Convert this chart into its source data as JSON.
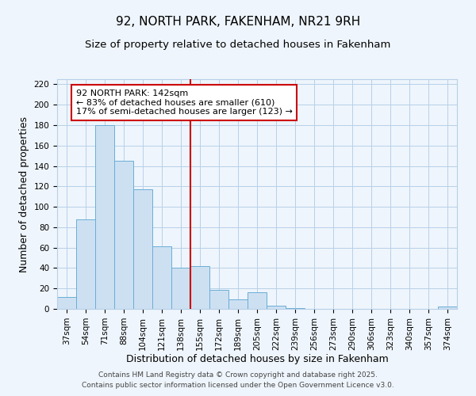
{
  "title": "92, NORTH PARK, FAKENHAM, NR21 9RH",
  "subtitle": "Size of property relative to detached houses in Fakenham",
  "xlabel": "Distribution of detached houses by size in Fakenham",
  "ylabel": "Number of detached properties",
  "bar_labels": [
    "37sqm",
    "54sqm",
    "71sqm",
    "88sqm",
    "104sqm",
    "121sqm",
    "138sqm",
    "155sqm",
    "172sqm",
    "189sqm",
    "205sqm",
    "222sqm",
    "239sqm",
    "256sqm",
    "273sqm",
    "290sqm",
    "306sqm",
    "323sqm",
    "340sqm",
    "357sqm",
    "374sqm"
  ],
  "bar_values": [
    12,
    88,
    180,
    145,
    117,
    61,
    40,
    42,
    19,
    9,
    16,
    3,
    1,
    0,
    0,
    0,
    0,
    0,
    0,
    0,
    2
  ],
  "bar_color": "#cde0f2",
  "bar_edge_color": "#6aaed6",
  "vline_x": 6.5,
  "vline_color": "#cc0000",
  "annotation_line1": "92 NORTH PARK: 142sqm",
  "annotation_line2": "← 83% of detached houses are smaller (610)",
  "annotation_line3": "17% of semi-detached houses are larger (123) →",
  "annotation_box_edge": "#cc0000",
  "annotation_box_bg": "#ffffff",
  "ylim": [
    0,
    225
  ],
  "yticks": [
    0,
    20,
    40,
    60,
    80,
    100,
    120,
    140,
    160,
    180,
    200,
    220
  ],
  "footer1": "Contains HM Land Registry data © Crown copyright and database right 2025.",
  "footer2": "Contains public sector information licensed under the Open Government Licence v3.0.",
  "bg_color": "#eef5fc",
  "grid_color": "#b8d0e8",
  "title_fontsize": 11,
  "subtitle_fontsize": 9.5,
  "axis_label_fontsize": 9,
  "tick_fontsize": 7.5,
  "annotation_fontsize": 8,
  "footer_fontsize": 6.5
}
